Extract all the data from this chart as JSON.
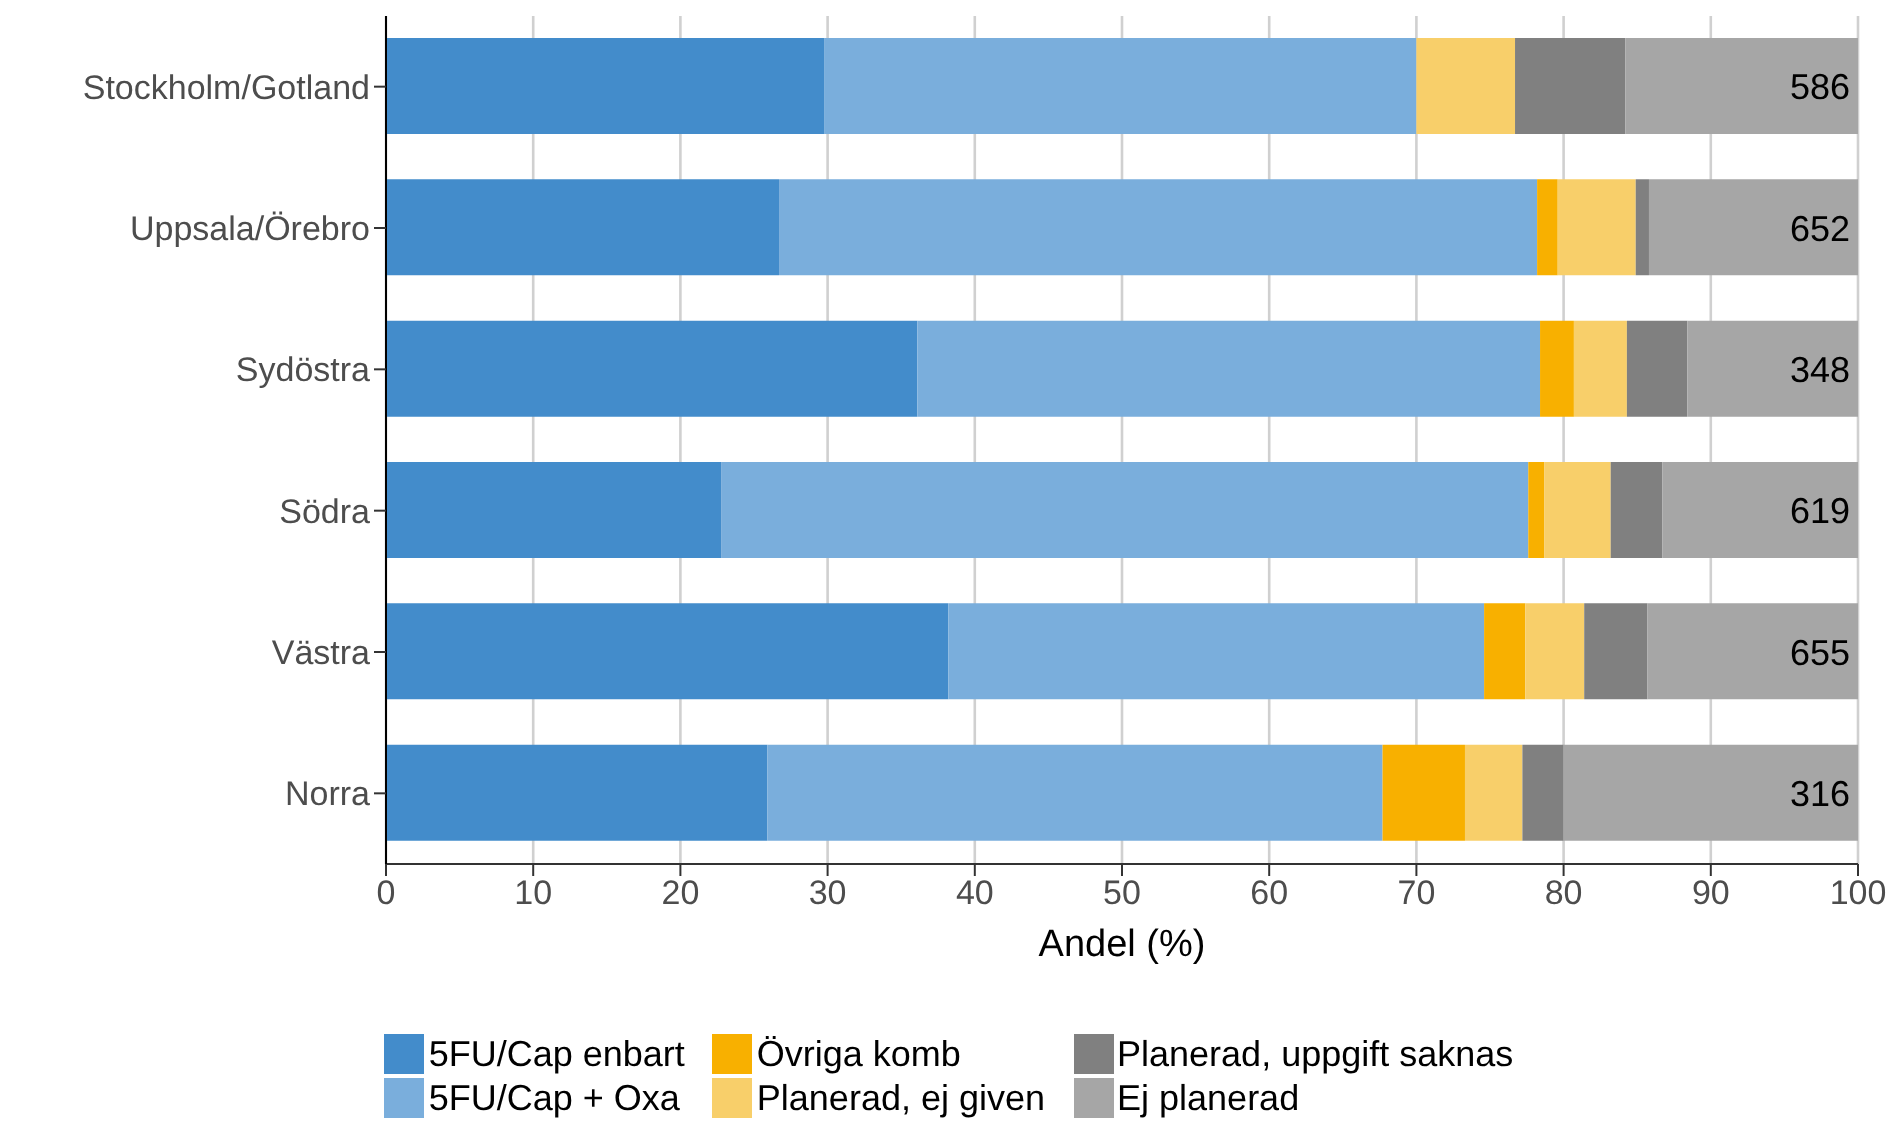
{
  "chart_data": {
    "type": "bar",
    "orientation": "horizontal",
    "stacked": true,
    "categories": [
      "Stockholm/Gotland",
      "Uppsala/Örebro",
      "Sydöstra",
      "Södra",
      "Västra",
      "Norra"
    ],
    "series": [
      {
        "name": "5FU/Cap enbart",
        "color": "#438ccb",
        "values": [
          29.8,
          26.7,
          36.1,
          22.8,
          38.2,
          25.9
        ]
      },
      {
        "name": "5FU/Cap + Oxa",
        "color": "#7aaedc",
        "values": [
          40.2,
          51.5,
          42.3,
          54.8,
          36.4,
          41.8
        ]
      },
      {
        "name": "Övriga komb",
        "color": "#f8b000",
        "values": [
          0,
          1.4,
          2.3,
          1.1,
          2.8,
          5.6
        ]
      },
      {
        "name": "Planerad, ej given",
        "color": "#f8cf6a",
        "values": [
          6.7,
          5.3,
          3.6,
          4.5,
          4.0,
          3.9
        ]
      },
      {
        "name": "Planerad, uppgift saknas",
        "color": "#808080",
        "values": [
          7.5,
          0.9,
          4.1,
          3.5,
          4.3,
          2.8
        ]
      },
      {
        "name": "Ej planerad",
        "color": "#a6a6a6",
        "values": [
          15.8,
          14.2,
          11.6,
          13.3,
          14.3,
          20.0
        ]
      }
    ],
    "xlabel": "Andel (%)",
    "xlim": [
      0,
      100
    ],
    "xticks": [
      0,
      10,
      20,
      30,
      40,
      50,
      60,
      70,
      80,
      90,
      100
    ],
    "grid": "x",
    "legend": "bottom",
    "annotations": [
      "586",
      "652",
      "348",
      "619",
      "655",
      "316"
    ]
  }
}
